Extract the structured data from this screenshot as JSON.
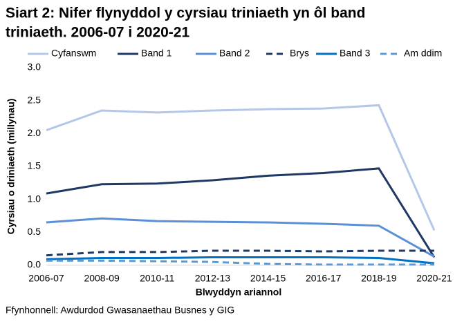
{
  "chart_data": {
    "type": "line",
    "title": [
      "Siart 2: Nifer flynyddol y cyrsiau triniaeth yn ôl band",
      "triniaeth. 2006-07 i 2020-21"
    ],
    "x_label": "Blwyddyn ariannol",
    "y_label": "Cyrsiau o driniaeth (millynau)",
    "source": "Ffynhonnell: Awdurdod Gwasanaethau Busnes y GIG",
    "categories": [
      "2006-07",
      "2008-09",
      "2010-11",
      "2012-13",
      "2014-15",
      "2016-17",
      "2018-19",
      "2020-21"
    ],
    "series": [
      {
        "name": "Cyfanswm",
        "color": "#b4c7e7",
        "dash": false,
        "values": [
          2.05,
          2.35,
          2.32,
          2.35,
          2.37,
          2.38,
          2.43,
          0.53
        ]
      },
      {
        "name": "Band 1",
        "color": "#1f3864",
        "dash": false,
        "values": [
          1.09,
          1.23,
          1.24,
          1.29,
          1.36,
          1.4,
          1.47,
          0.12
        ]
      },
      {
        "name": "Band 2",
        "color": "#5b8fd6",
        "dash": false,
        "values": [
          0.65,
          0.71,
          0.67,
          0.66,
          0.65,
          0.63,
          0.6,
          0.13
        ]
      },
      {
        "name": "Brys",
        "color": "#1f3864",
        "dash": true,
        "values": [
          0.15,
          0.2,
          0.2,
          0.22,
          0.22,
          0.21,
          0.22,
          0.22
        ]
      },
      {
        "name": "Band 3",
        "color": "#0070c0",
        "dash": false,
        "values": [
          0.09,
          0.11,
          0.11,
          0.12,
          0.12,
          0.12,
          0.11,
          0.03
        ]
      },
      {
        "name": "Am ddim",
        "color": "#5b9bd5",
        "dash": true,
        "values": [
          0.07,
          0.07,
          0.06,
          0.05,
          0.02,
          0.01,
          0.01,
          0.01
        ]
      }
    ],
    "ylim": [
      0,
      3
    ],
    "yticks": [
      {
        "value": 0,
        "label": "0.0"
      },
      0.5,
      {
        "value": 1,
        "label": "1.0"
      },
      1.5,
      {
        "value": 2,
        "label": "2.0"
      },
      2.5,
      {
        "value": 3,
        "label": "3.0"
      }
    ],
    "grid": false
  }
}
